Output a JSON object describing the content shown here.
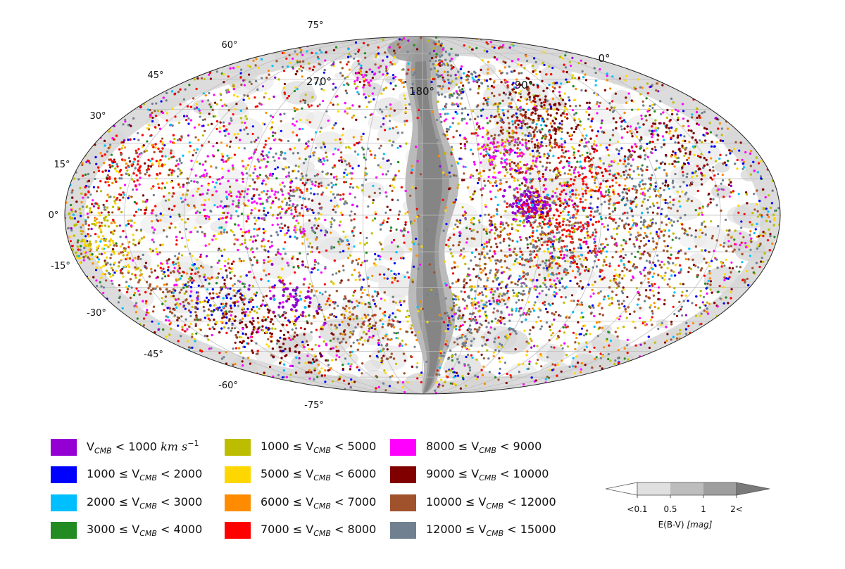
{
  "chart_data": {
    "type": "scatter",
    "projection": "mollweide",
    "background_map": "dust extinction E(B-V), grayscale levels",
    "lat_tick_labels": [
      "75°",
      "60°",
      "45°",
      "30°",
      "15°",
      "0°",
      "-15°",
      "-30°",
      "-45°",
      "-60°",
      "-75°"
    ],
    "lon_tick_labels": [
      "270°",
      "180°",
      "90°",
      "0°"
    ],
    "series": [
      {
        "name": "V_CMB < 1000 km s^-1",
        "color": "#9400D3"
      },
      {
        "name": "1000 ≤ V_CMB < 2000",
        "color": "#0000FF"
      },
      {
        "name": "2000 ≤ V_CMB < 3000",
        "color": "#00BFFF"
      },
      {
        "name": "3000 ≤ V_CMB < 4000",
        "color": "#228B22"
      },
      {
        "name": "1000 ≤ V_CMB < 5000",
        "color": "#BDBD00"
      },
      {
        "name": "5000 ≤ V_CMB < 6000",
        "color": "#FFD700"
      },
      {
        "name": "6000 ≤ V_CMB < 7000",
        "color": "#FF8C00"
      },
      {
        "name": "7000 ≤ V_CMB < 8000",
        "color": "#FF0000"
      },
      {
        "name": "8000 ≤ V_CMB < 9000",
        "color": "#FF00FF"
      },
      {
        "name": "9000 ≤ V_CMB < 10000",
        "color": "#800000"
      },
      {
        "name": "10000 ≤ V_CMB < 12000",
        "color": "#A0522D"
      },
      {
        "name": "12000 ≤ V_CMB < 15000",
        "color": "#708090"
      }
    ],
    "colorbar": {
      "title": "E(B-V) [mag]",
      "ticks": [
        "<0.1",
        "0.5",
        "1",
        "2<"
      ],
      "colors": [
        "#ffffff",
        "#e0e0e0",
        "#bdbdbd",
        "#9e9e9e",
        "#7a7a7a"
      ]
    }
  },
  "legend": {
    "col1": [
      {
        "pre": "V",
        "sub": "CMB",
        "post": " < 1000  ",
        "unit": "km s",
        "sup": "−1"
      },
      {
        "pre": " 1000 ≤ V",
        "sub": "CMB",
        "post": " < 2000"
      },
      {
        "pre": "2000 ≤ V",
        "sub": "CMB",
        "post": " < 3000"
      },
      {
        "pre": "3000 ≤ V",
        "sub": "CMB",
        "post": " < 4000"
      }
    ],
    "col2": [
      {
        "pre": "1000 ≤ V",
        "sub": "CMB",
        "post": " < 5000"
      },
      {
        "pre": "5000 ≤ V",
        "sub": "CMB",
        "post": " < 6000"
      },
      {
        "pre": "6000 ≤ V",
        "sub": "CMB",
        "post": " < 7000"
      },
      {
        "pre": "7000 ≤ V",
        "sub": "CMB",
        "post": " < 8000"
      }
    ],
    "col3": [
      {
        "pre": "8000 ≤ V",
        "sub": "CMB",
        "post": " < 9000"
      },
      {
        "pre": "9000 ≤ V",
        "sub": "CMB",
        "post": " < 10000"
      },
      {
        "pre": "10000 ≤ V",
        "sub": "CMB",
        "post": " < 12000"
      },
      {
        "pre": "12000 ≤ V",
        "sub": "CMB",
        "post": " < 15000"
      }
    ]
  },
  "colorbar_labels": {
    "title_pre": "E(B-V) ",
    "title_unit": "[mag]",
    "ticks": [
      "<0.1",
      "0.5",
      "1",
      "2<"
    ]
  }
}
